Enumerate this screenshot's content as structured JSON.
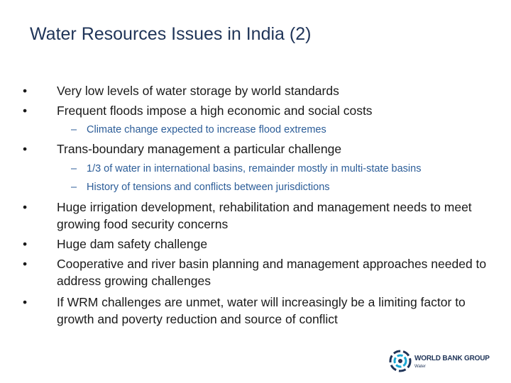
{
  "header": {
    "title": "Water Resources Issues in India (2)"
  },
  "bullets": [
    {
      "text": "Very low levels of water storage by world standards"
    },
    {
      "text": "Frequent floods impose a high economic and social costs",
      "subs": [
        "Climate change expected to increase flood extremes"
      ]
    },
    {
      "text": "Trans-boundary management a particular challenge",
      "subs": [
        "1/3 of water in international basins, remainder mostly in multi-state basins",
        "History of tensions and conflicts between jurisdictions"
      ]
    },
    {
      "text": "Huge irrigation development, rehabilitation and management needs to meet growing food security concerns"
    },
    {
      "text": "Huge dam safety challenge"
    },
    {
      "text": "Cooperative and river basin planning and management approaches needed to address growing challenges"
    },
    {
      "text": "If WRM challenges are unmet, water will increasingly be a limiting factor to growth and poverty reduction and source of conflict"
    }
  ],
  "logo": {
    "name": "WORLD BANK GROUP",
    "unit": "Water"
  }
}
